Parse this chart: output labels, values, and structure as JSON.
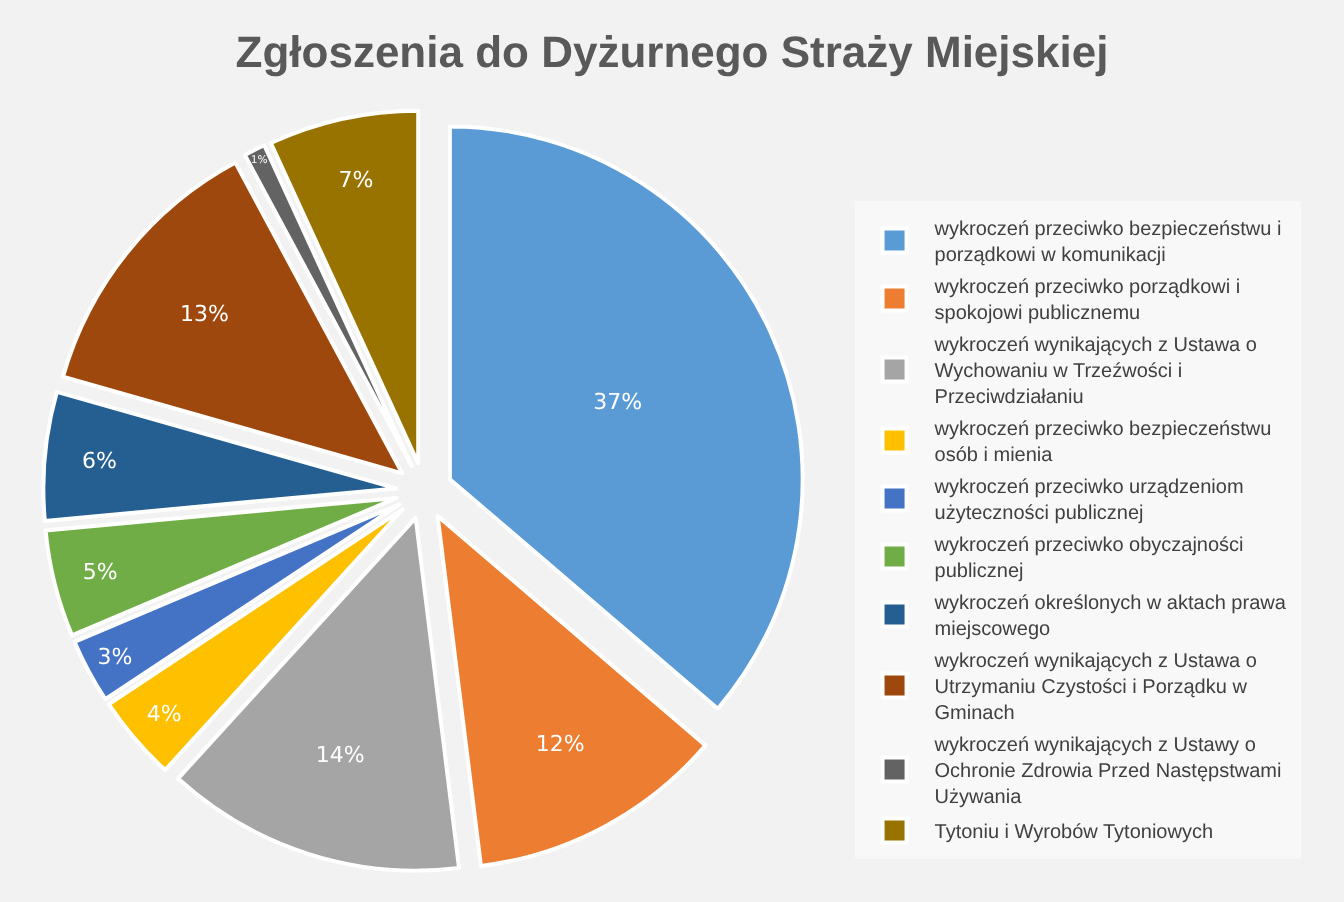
{
  "chart_data": {
    "type": "pie",
    "title": "Zgłoszenia do Dyżurnego Straży Miejskiej",
    "categories": [
      "wykroczeń przeciwko bezpieczeństwu i porządkowi w komunikacji",
      "wykroczeń przeciwko porządkowi i spokojowi publicznemu",
      "wykroczeń wynikających z Ustawa o Wychowaniu w Trzeźwości i Przeciwdziałaniu",
      "wykroczeń przeciwko bezpieczeństwu osób i mienia",
      "wykroczeń przeciwko urządzeniom użyteczności publicznej",
      "wykroczeń przeciwko obyczajności publicznej",
      "wykroczeń określonych w aktach prawa miejscowego",
      "wykroczeń wynikających z Ustawa o Utrzymaniu Czystości i Porządku w Gminach",
      "wykroczeń wynikających z Ustawy o Ochronie Zdrowia Przed Następstwami Używania",
      "Tytoniu i Wyrobów Tytoniowych"
    ],
    "values": [
      37,
      12,
      14,
      4,
      3,
      5,
      6,
      13,
      1,
      7
    ],
    "value_labels": [
      "37%",
      "12%",
      "14%",
      "4%",
      "3%",
      "5%",
      "6%",
      "13%",
      "1%",
      "7%"
    ],
    "colors": [
      "#5b9bd5",
      "#ed7d31",
      "#a5a5a5",
      "#ffc000",
      "#4472c4",
      "#70ad47",
      "#255e91",
      "#9e480e",
      "#636363",
      "#997300"
    ],
    "legend": "right"
  }
}
